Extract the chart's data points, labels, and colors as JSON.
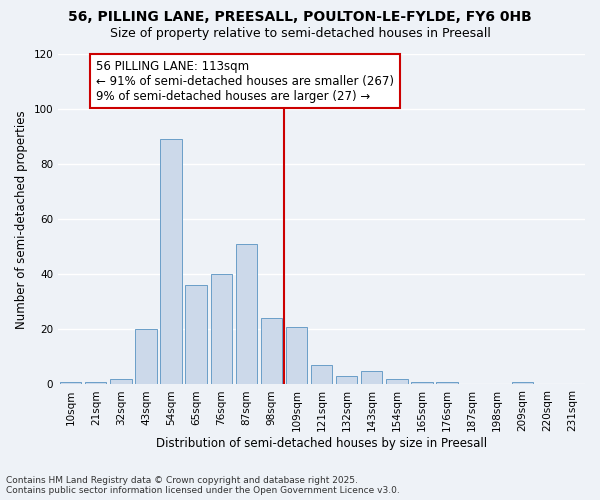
{
  "title1": "56, PILLING LANE, PREESALL, POULTON-LE-FYLDE, FY6 0HB",
  "title2": "Size of property relative to semi-detached houses in Preesall",
  "xlabel": "Distribution of semi-detached houses by size in Preesall",
  "ylabel": "Number of semi-detached properties",
  "annotation_title": "56 PILLING LANE: 113sqm",
  "annotation_line1": "← 91% of semi-detached houses are smaller (267)",
  "annotation_line2": "9% of semi-detached houses are larger (27) →",
  "footnote1": "Contains HM Land Registry data © Crown copyright and database right 2025.",
  "footnote2": "Contains public sector information licensed under the Open Government Licence v3.0.",
  "categories": [
    "10sqm",
    "21sqm",
    "32sqm",
    "43sqm",
    "54sqm",
    "65sqm",
    "76sqm",
    "87sqm",
    "98sqm",
    "109sqm",
    "121sqm",
    "132sqm",
    "143sqm",
    "154sqm",
    "165sqm",
    "176sqm",
    "187sqm",
    "198sqm",
    "209sqm",
    "220sqm",
    "231sqm"
  ],
  "values": [
    1,
    1,
    2,
    20,
    89,
    36,
    40,
    51,
    24,
    21,
    7,
    3,
    5,
    2,
    1,
    1,
    0,
    0,
    1,
    0,
    0
  ],
  "bar_color": "#ccd9ea",
  "bar_edge_color": "#6a9ec8",
  "vline_index": 9,
  "vline_color": "#cc0000",
  "annotation_box_color": "#cc0000",
  "ylim": [
    0,
    120
  ],
  "yticks": [
    0,
    20,
    40,
    60,
    80,
    100,
    120
  ],
  "background_color": "#eef2f7",
  "grid_color": "#ffffff",
  "title_fontsize": 10,
  "subtitle_fontsize": 9,
  "axis_label_fontsize": 8.5,
  "tick_fontsize": 7.5,
  "annotation_fontsize": 8.5,
  "footnote_fontsize": 6.5
}
